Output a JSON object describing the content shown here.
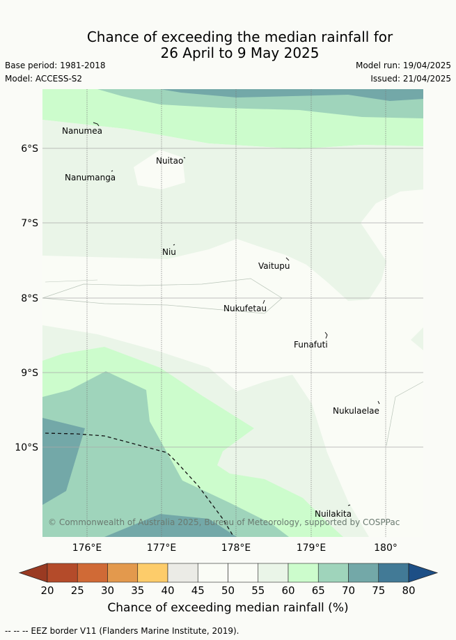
{
  "title_line1": "Chance of exceeding the median rainfall for",
  "title_line2": "26 April to 9 May 2025",
  "base_period": "Base period: 1981-2018",
  "model": "Model: ACCESS-S2",
  "model_run": "Model run: 19/04/2025",
  "issued": "Issued: 21/04/2025",
  "lat_labels": [
    "6°S",
    "7°S",
    "8°S",
    "9°S",
    "10°S"
  ],
  "lon_labels": [
    "176°E",
    "177°E",
    "178°E",
    "179°E",
    "180°"
  ],
  "places": [
    "Nanumea",
    "Nuitao",
    "Nanumanga",
    "Niu",
    "Vaitupu",
    "Nukufetau",
    "Funafuti",
    "Nukulaelae",
    "Nuilakita"
  ],
  "copyright": "© Commonwealth of Australia 2025, Bureau of Meteorology, supported by COSPPac",
  "colorbar": {
    "ticks": [
      "20",
      "25",
      "30",
      "35",
      "40",
      "45",
      "50",
      "55",
      "60",
      "65",
      "70",
      "75",
      "80"
    ],
    "colors": [
      "#9a3a22",
      "#b44b2a",
      "#d06a36",
      "#e3994d",
      "#fdcc6a",
      "#ebebe6",
      "#fafcf6",
      "#fafcf6",
      "#eaf5e8",
      "#ccfccc",
      "#9fd4bb",
      "#73a8a8",
      "#427a96",
      "#1d4f86"
    ],
    "title": "Chance of exceeding median rainfall (%)"
  },
  "legend_footer": "--  --  -- EEZ border V11 (Flanders Marine Institute, 2019)."
}
